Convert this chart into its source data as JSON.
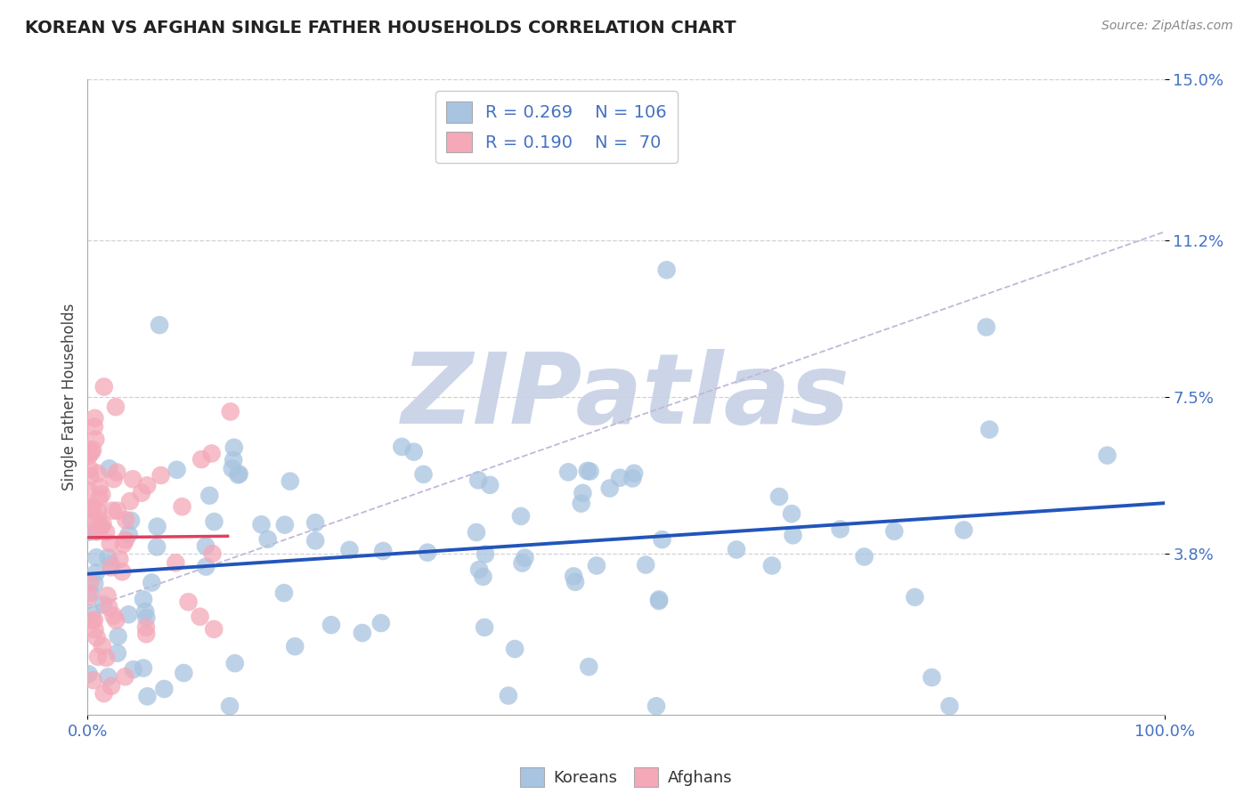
{
  "title": "KOREAN VS AFGHAN SINGLE FATHER HOUSEHOLDS CORRELATION CHART",
  "source_text": "Source: ZipAtlas.com",
  "ylabel": "Single Father Households",
  "xlim": [
    0.0,
    1.0
  ],
  "ylim": [
    0.0,
    0.15
  ],
  "yticks": [
    0.038,
    0.075,
    0.112,
    0.15
  ],
  "ytick_labels": [
    "3.8%",
    "7.5%",
    "11.2%",
    "15.0%"
  ],
  "xticks": [
    0.0,
    1.0
  ],
  "xtick_labels": [
    "0.0%",
    "100.0%"
  ],
  "korean_color": "#a8c4e0",
  "afghan_color": "#f4a8b8",
  "korean_line_color": "#2255bb",
  "afghan_line_color": "#e04060",
  "dashed_line_color": "#c0b8d8",
  "label_color": "#4472c4",
  "background_color": "#ffffff",
  "grid_color": "#d0d0d8",
  "R_korean": 0.269,
  "N_korean": 106,
  "R_afghan": 0.19,
  "N_afghan": 70,
  "watermark": "ZIPatlas",
  "watermark_color": "#ccd5e8",
  "legend_box_color_korean": "#a8c4e0",
  "legend_box_color_afghan": "#f4a8b8",
  "seed": 99,
  "title_fontsize": 14,
  "tick_label_color": "#4472c4",
  "source_color": "#888888",
  "ylabel_color": "#444444"
}
